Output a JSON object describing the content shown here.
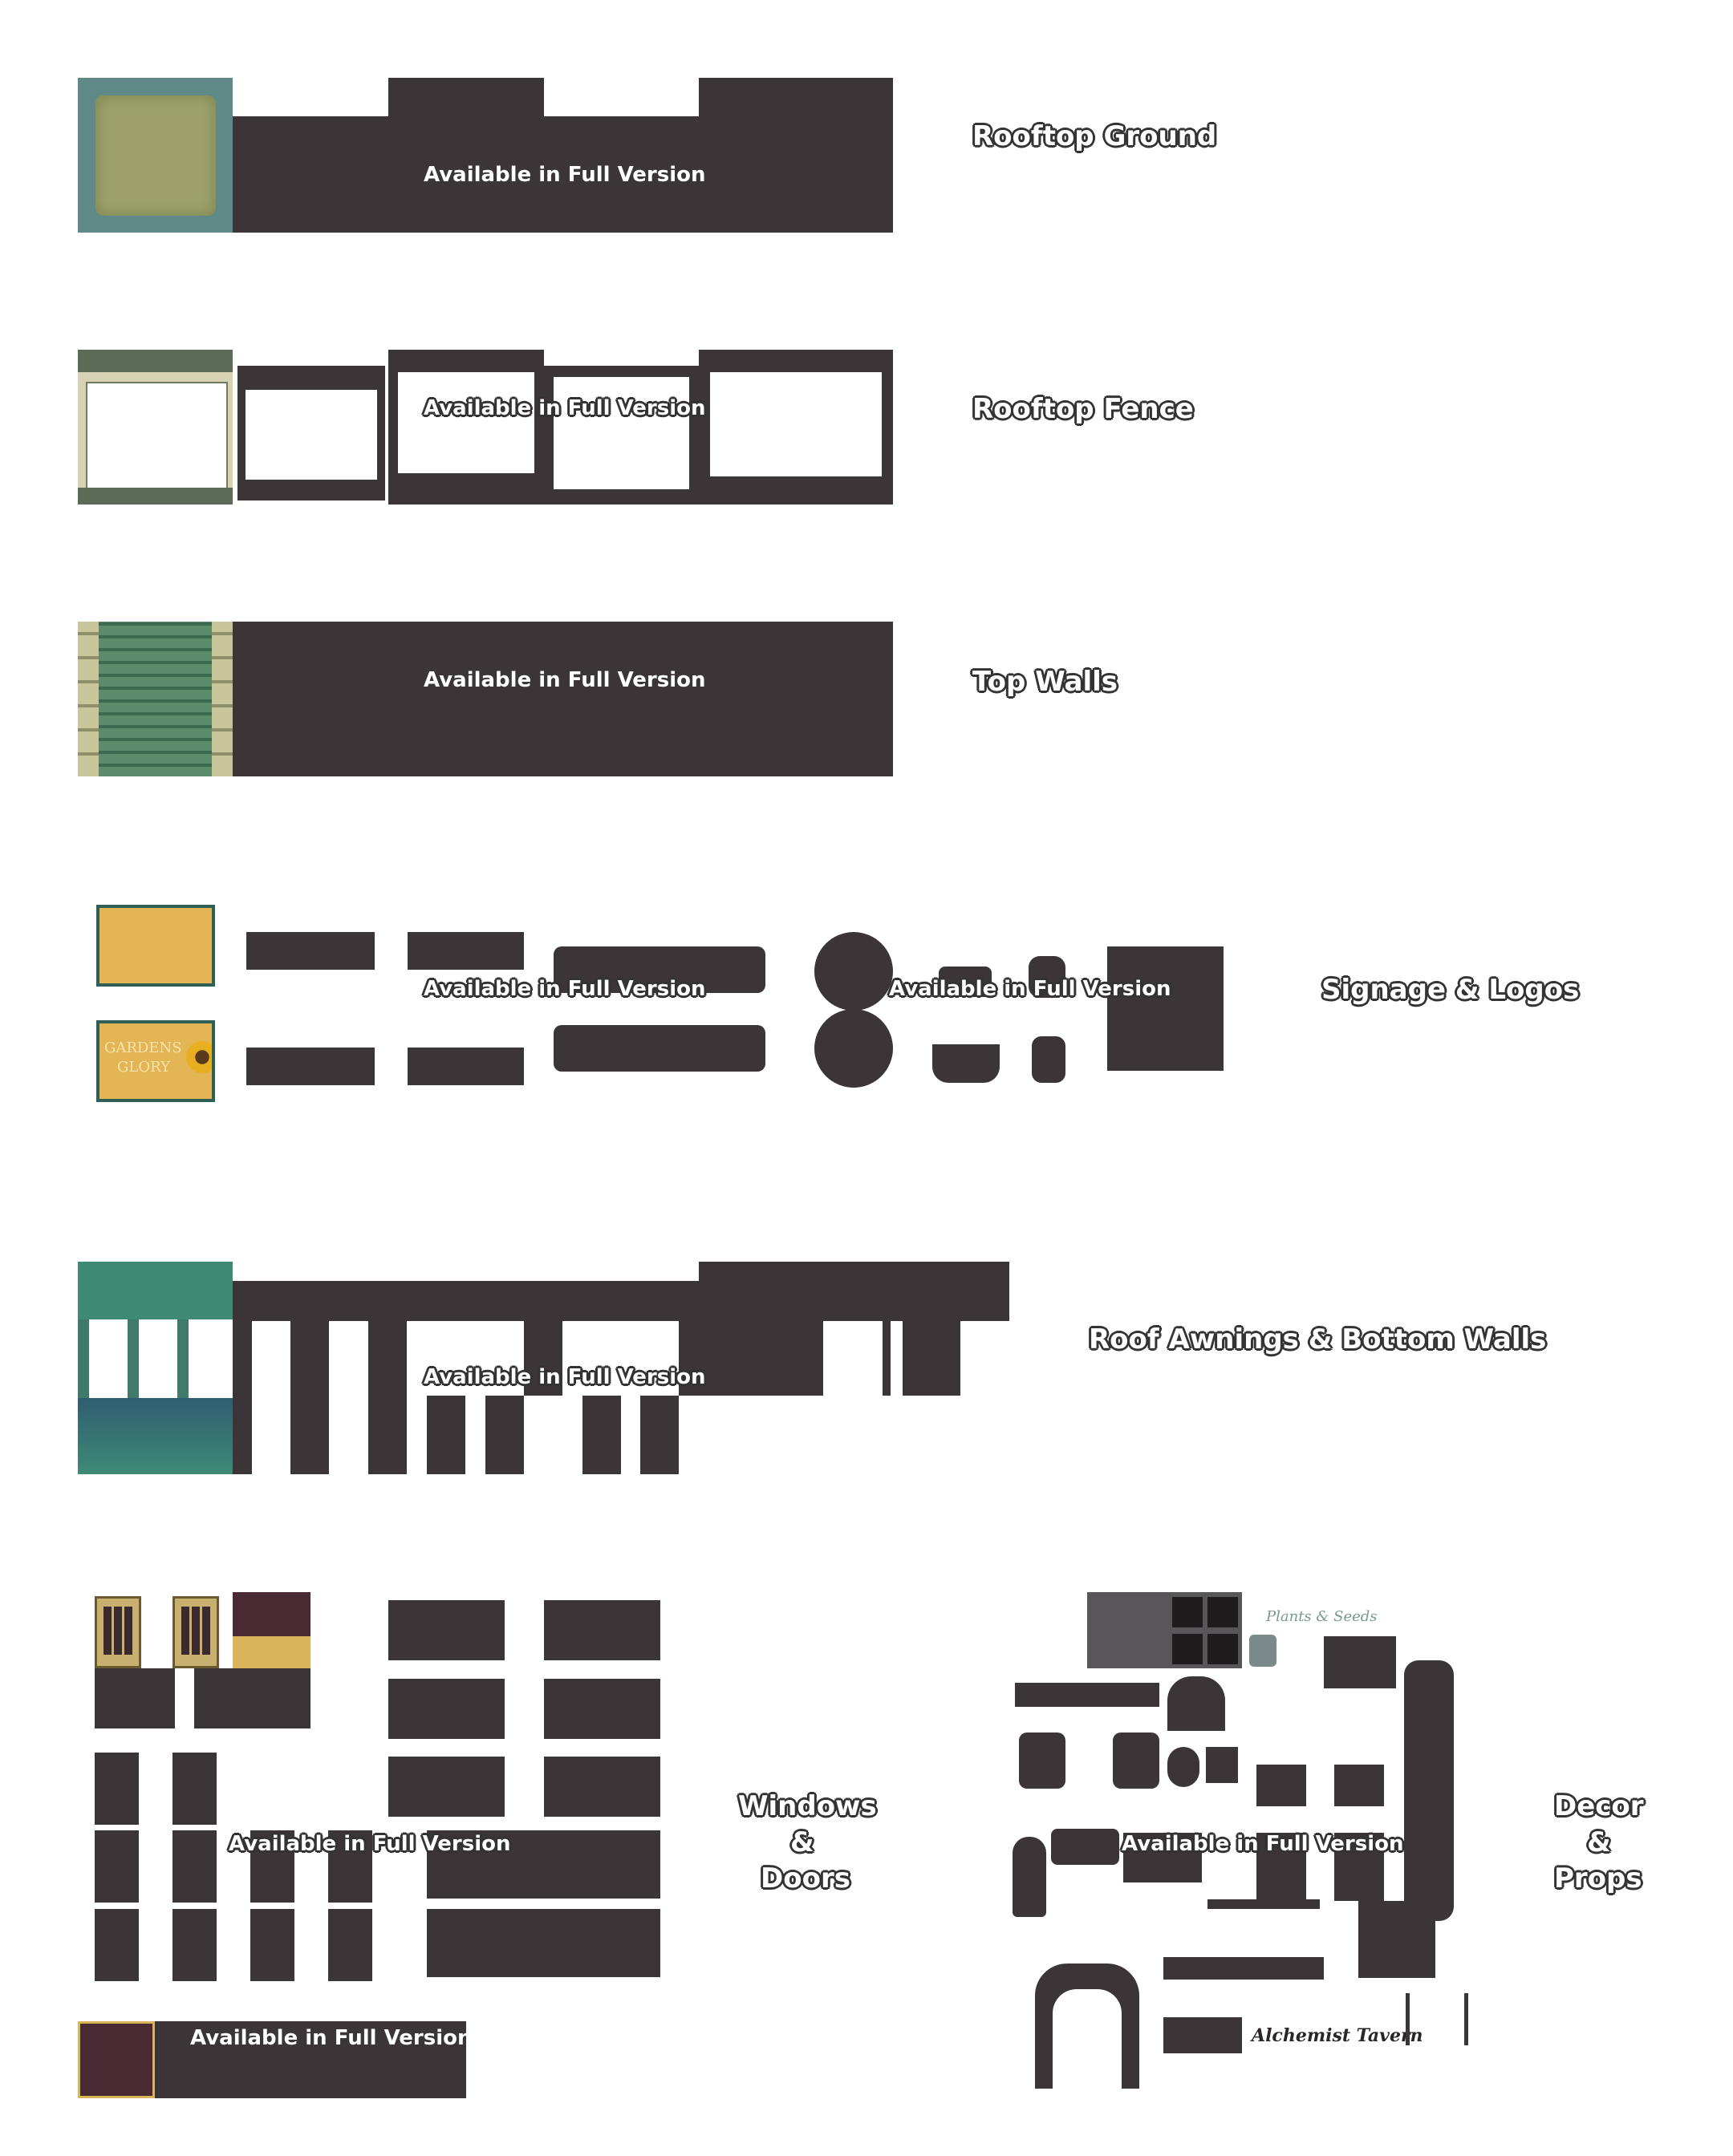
{
  "watermark": "Available in Full Version",
  "sections": {
    "rooftop_ground": "Rooftop Ground",
    "rooftop_fence": "Rooftop Fence",
    "top_walls": "Top Walls",
    "signage": "Signage & Logos",
    "awnings": "Roof Awnings & Bottom Walls",
    "windows_l1": "Windows",
    "windows_l2": "&",
    "windows_l3": "Doors",
    "decor_l1": "Decor",
    "decor_l2": "&",
    "decor_l3": "Props"
  },
  "sign": {
    "line1": "GARDENS",
    "line2": "GLORY"
  },
  "decor_texts": {
    "plants": "Plants & Seeds",
    "tavern": "Alchemist Tavern"
  },
  "colors": {
    "dark": "#3b3537",
    "teal": "#4a8a7a",
    "gold": "#d9b45a"
  }
}
